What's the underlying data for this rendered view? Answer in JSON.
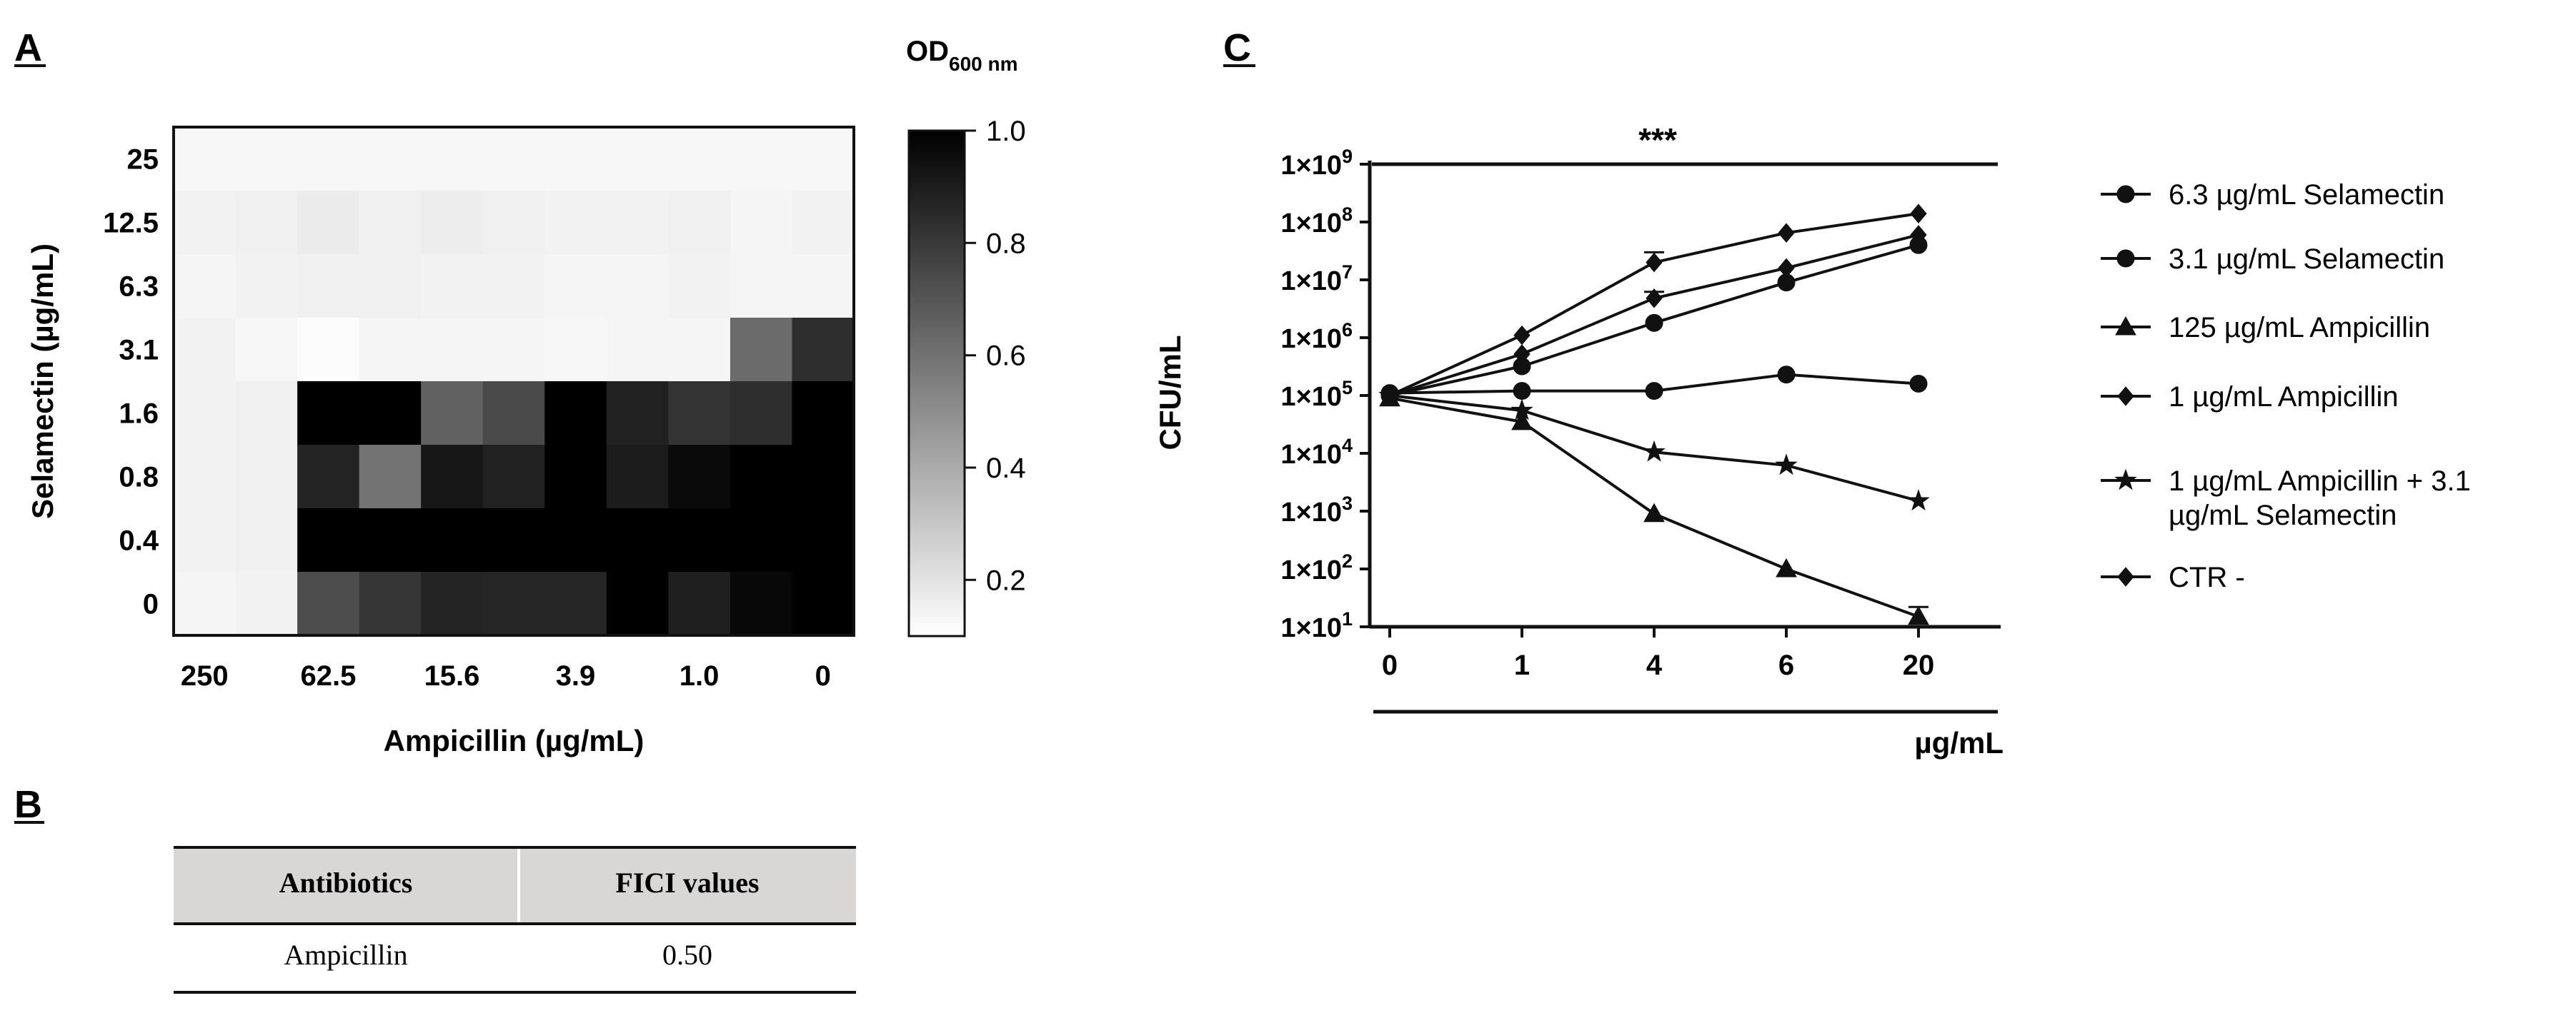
{
  "panels": {
    "a": "A",
    "b": "B",
    "c": "C"
  },
  "colorbar": {
    "title_main": "OD",
    "title_sub": "600 nm",
    "ticks": [
      {
        "value": 1.0,
        "label": "1.0"
      },
      {
        "value": 0.8,
        "label": "0.8"
      },
      {
        "value": 0.6,
        "label": "0.6"
      },
      {
        "value": 0.4,
        "label": "0.4"
      },
      {
        "value": 0.2,
        "label": "0.2"
      }
    ],
    "min": 0.1,
    "max": 1.0
  },
  "table": {
    "headers": [
      "Antibiotics",
      "FICI values"
    ],
    "rows": [
      [
        "Ampicillin",
        "0.50"
      ]
    ]
  },
  "chart_data": [
    {
      "type": "heatmap",
      "title": "",
      "xlabel": "Ampicillin (µg/mL)",
      "ylabel": "Selamectin (µg/mL)",
      "x_tick_labels": [
        "250",
        "62.5",
        "15.6",
        "3.9",
        "1.0",
        "0"
      ],
      "y_tick_labels": [
        "25",
        "12.5",
        "6.3",
        "3.1",
        "1.6",
        "0.8",
        "0.4",
        "0"
      ],
      "columns": 11,
      "rows": 8,
      "value_label": "OD600 nm",
      "values": [
        [
          0.03,
          0.03,
          0.03,
          0.03,
          0.03,
          0.03,
          0.03,
          0.03,
          0.03,
          0.03,
          0.03
        ],
        [
          0.05,
          0.06,
          0.08,
          0.06,
          0.07,
          0.06,
          0.05,
          0.05,
          0.06,
          0.04,
          0.05
        ],
        [
          0.04,
          0.05,
          0.06,
          0.06,
          0.05,
          0.05,
          0.04,
          0.04,
          0.05,
          0.04,
          0.04
        ],
        [
          0.05,
          0.03,
          0.01,
          0.04,
          0.04,
          0.04,
          0.03,
          0.04,
          0.04,
          0.58,
          0.82
        ],
        [
          0.05,
          0.06,
          1.0,
          1.0,
          0.62,
          0.71,
          1.0,
          0.87,
          0.8,
          0.82,
          1.0
        ],
        [
          0.05,
          0.06,
          0.86,
          0.55,
          0.91,
          0.87,
          1.0,
          0.89,
          0.96,
          1.0,
          1.0
        ],
        [
          0.05,
          0.06,
          1.0,
          1.0,
          1.0,
          1.0,
          1.0,
          1.0,
          1.0,
          1.0,
          1.0
        ],
        [
          0.04,
          0.05,
          0.7,
          0.79,
          0.86,
          0.85,
          0.85,
          1.0,
          0.88,
          0.97,
          1.0
        ]
      ]
    },
    {
      "type": "line",
      "title": "",
      "xlabel": "µg/mL",
      "ylabel": "CFU/mL",
      "yscale": "log",
      "ylim": [
        10,
        1000000000
      ],
      "categories": [
        "0",
        "1",
        "4",
        "6",
        "20"
      ],
      "y_tick_labels": [
        {
          "base": "1×10",
          "exp": "9",
          "value": 1000000000
        },
        {
          "base": "1×10",
          "exp": "8",
          "value": 100000000
        },
        {
          "base": "1×10",
          "exp": "7",
          "value": 10000000
        },
        {
          "base": "1×10",
          "exp": "6",
          "value": 1000000
        },
        {
          "base": "1×10",
          "exp": "5",
          "value": 100000
        },
        {
          "base": "1×10",
          "exp": "4",
          "value": 10000
        },
        {
          "base": "1×10",
          "exp": "3",
          "value": 1000
        },
        {
          "base": "1×10",
          "exp": "2",
          "value": 100
        },
        {
          "base": "1×10",
          "exp": "1",
          "value": 10
        }
      ],
      "significance": "***",
      "series": [
        {
          "name": "6.3 µg/mL Selamectin",
          "marker": "circle",
          "values": [
            110000,
            120000,
            120000,
            230000,
            160000
          ]
        },
        {
          "name": "3.1 µg/mL Selamectin",
          "marker": "circle",
          "values": [
            100000,
            320000,
            1800000,
            9000000,
            40000000
          ]
        },
        {
          "name": "125 µg/mL Ampicillin",
          "marker": "triangle",
          "values": [
            90000,
            35000,
            900,
            100,
            15
          ]
        },
        {
          "name": "1 µg/mL Ampicillin",
          "marker": "diamond",
          "values": [
            100000,
            520000,
            4800000,
            16000000,
            60000000
          ]
        },
        {
          "name": "1 µg/mL Ampicillin + 3.1 µg/mL Selamectin",
          "legend_lines": [
            "1 µg/mL Ampicillin + 3.1",
            "µg/mL Selamectin"
          ],
          "marker": "star",
          "values": [
            100000,
            55000,
            10500,
            6200,
            1500
          ]
        },
        {
          "name": "CTR -",
          "marker": "diamond",
          "values": [
            100000,
            1100000,
            20000000,
            65000000,
            140000000
          ]
        }
      ],
      "error_bars": [
        {
          "series": 5,
          "index": 2,
          "upper": 30000000
        },
        {
          "series": 3,
          "index": 2,
          "upper": 6200000
        },
        {
          "series": 2,
          "index": 4,
          "upper": 22
        }
      ]
    }
  ]
}
